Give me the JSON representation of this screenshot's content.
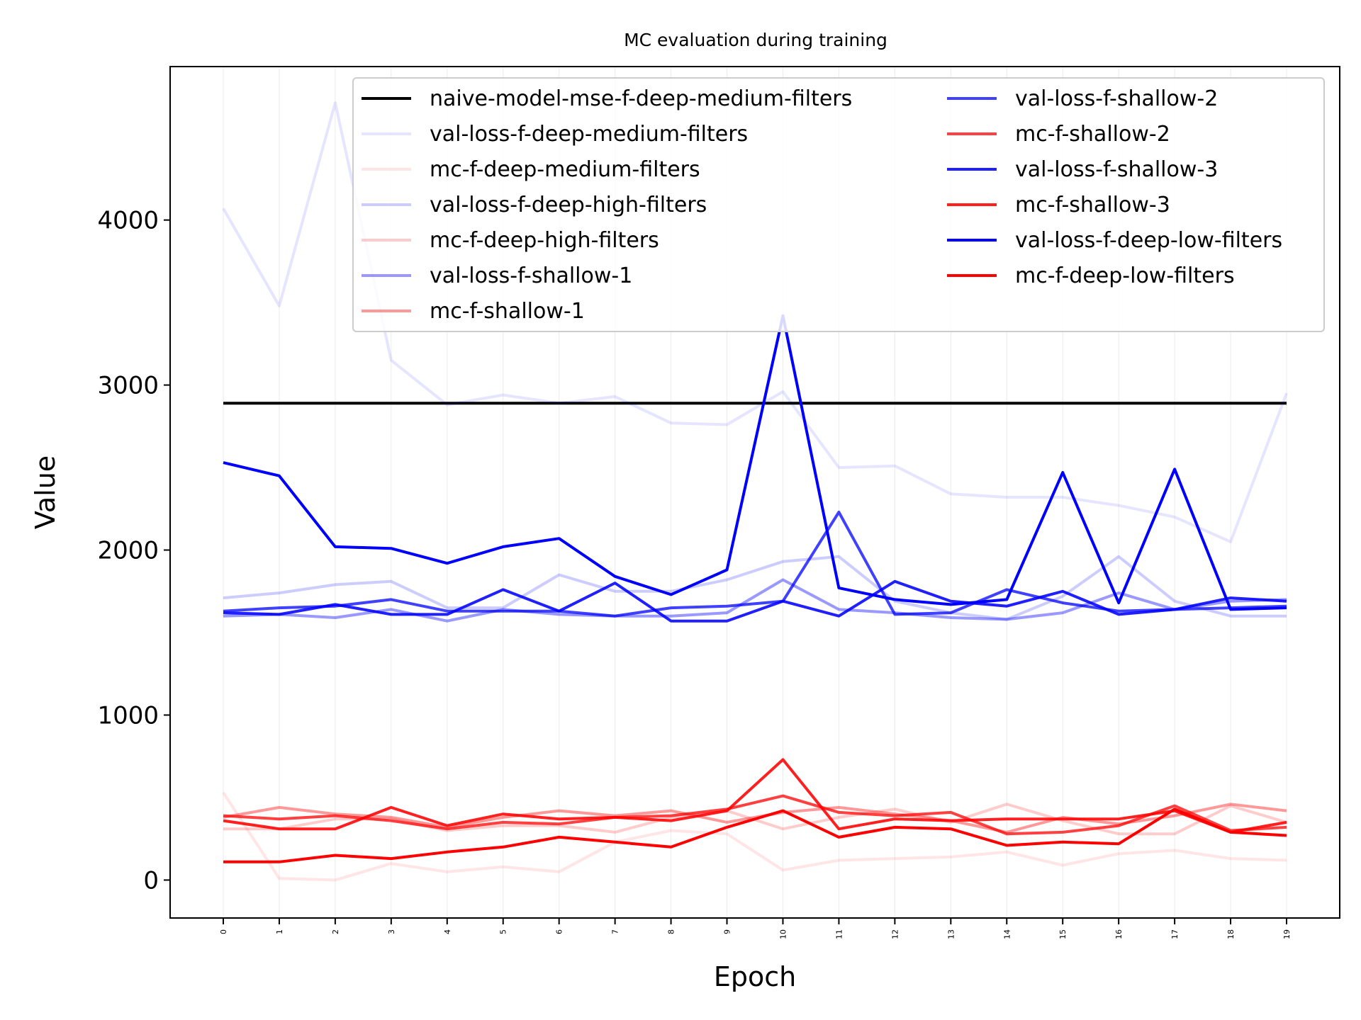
{
  "chart_data": {
    "type": "line",
    "title": "MC evaluation during training",
    "xlabel": "Epoch",
    "ylabel": "Value",
    "x": [
      0,
      1,
      2,
      3,
      4,
      5,
      6,
      7,
      8,
      9,
      10,
      11,
      12,
      13,
      14,
      15,
      16,
      17,
      18,
      19
    ],
    "xticks": [
      "0",
      "1",
      "2",
      "3",
      "4",
      "5",
      "6",
      "7",
      "8",
      "9",
      "10",
      "11",
      "12",
      "13",
      "14",
      "15",
      "16",
      "17",
      "18",
      "19"
    ],
    "yticks": [
      0,
      1000,
      2000,
      3000,
      4000
    ],
    "ylim": [
      -230,
      4930
    ],
    "xlim": [
      -0.95,
      19.95
    ],
    "grid": "vertical",
    "legend_position": "top-right",
    "legend_columns": 2,
    "series": [
      {
        "name": "naive-model-mse-f-deep-medium-filters",
        "color": "#000000",
        "opacity": 1.0,
        "values": [
          2890,
          2890,
          2890,
          2890,
          2890,
          2890,
          2890,
          2890,
          2890,
          2890,
          2890,
          2890,
          2890,
          2890,
          2890,
          2890,
          2890,
          2890,
          2890,
          2890
        ]
      },
      {
        "name": "val-loss-f-deep-medium-filters",
        "color": "#0000ff",
        "opacity": 0.1,
        "values": [
          4070,
          3480,
          4710,
          3150,
          2880,
          2940,
          2890,
          2930,
          2770,
          2760,
          2960,
          2500,
          2510,
          2340,
          2320,
          2320,
          2270,
          2200,
          2050,
          2950
        ]
      },
      {
        "name": "mc-f-deep-medium-filters",
        "color": "#ff0000",
        "opacity": 0.1,
        "values": [
          530,
          10,
          0,
          100,
          50,
          80,
          50,
          230,
          300,
          280,
          60,
          120,
          130,
          140,
          170,
          90,
          160,
          180,
          130,
          120
        ]
      },
      {
        "name": "val-loss-f-deep-high-filters",
        "color": "#0000ff",
        "opacity": 0.2,
        "values": [
          1710,
          1740,
          1790,
          1810,
          1650,
          1650,
          1850,
          1750,
          1750,
          1820,
          1930,
          1960,
          1690,
          1620,
          1580,
          1720,
          1960,
          1690,
          1600,
          1600
        ]
      },
      {
        "name": "mc-f-deep-high-filters",
        "color": "#ff0000",
        "opacity": 0.2,
        "values": [
          310,
          310,
          370,
          370,
          300,
          330,
          330,
          290,
          380,
          420,
          310,
          380,
          430,
          350,
          460,
          360,
          280,
          280,
          450,
          350
        ]
      },
      {
        "name": "val-loss-f-shallow-1",
        "color": "#0000ff",
        "opacity": 0.4,
        "values": [
          1600,
          1610,
          1590,
          1640,
          1570,
          1640,
          1610,
          1600,
          1600,
          1620,
          1820,
          1640,
          1620,
          1590,
          1580,
          1620,
          1740,
          1640,
          1690,
          1700
        ]
      },
      {
        "name": "mc-f-shallow-1",
        "color": "#ff0000",
        "opacity": 0.4,
        "values": [
          380,
          440,
          400,
          380,
          320,
          380,
          420,
          390,
          420,
          350,
          410,
          440,
          400,
          360,
          290,
          380,
          340,
          390,
          460,
          420
        ]
      },
      {
        "name": "val-loss-f-shallow-2",
        "color": "#0000ff",
        "opacity": 0.75,
        "values": [
          1630,
          1650,
          1660,
          1700,
          1630,
          1630,
          1630,
          1600,
          1650,
          1660,
          1690,
          2230,
          1610,
          1620,
          1760,
          1680,
          1630,
          1640,
          1650,
          1660
        ]
      },
      {
        "name": "mc-f-shallow-2",
        "color": "#ff0000",
        "opacity": 0.75,
        "values": [
          390,
          370,
          390,
          360,
          310,
          350,
          340,
          380,
          390,
          430,
          510,
          410,
          390,
          410,
          280,
          290,
          330,
          450,
          300,
          320
        ]
      },
      {
        "name": "val-loss-f-shallow-3",
        "color": "#0000ff",
        "opacity": 0.88,
        "values": [
          1620,
          1610,
          1670,
          1610,
          1610,
          1760,
          1630,
          1800,
          1570,
          1570,
          1690,
          1600,
          1810,
          1690,
          1660,
          1750,
          1610,
          1640,
          1710,
          1690
        ]
      },
      {
        "name": "mc-f-shallow-3",
        "color": "#ff0000",
        "opacity": 0.88,
        "values": [
          360,
          310,
          310,
          440,
          330,
          400,
          370,
          380,
          360,
          420,
          730,
          310,
          370,
          360,
          370,
          370,
          370,
          420,
          290,
          350
        ]
      },
      {
        "name": "val-loss-f-deep-low-filters",
        "color": "#0000ff",
        "opacity": 1.0,
        "values": [
          2530,
          2450,
          2020,
          2010,
          1920,
          2020,
          2070,
          1840,
          1730,
          1880,
          3420,
          1770,
          1700,
          1670,
          1700,
          2470,
          1680,
          2490,
          1640,
          1650
        ]
      },
      {
        "name": "mc-f-deep-low-filters",
        "color": "#ff0000",
        "opacity": 1.0,
        "values": [
          110,
          110,
          150,
          130,
          170,
          200,
          260,
          230,
          200,
          320,
          420,
          260,
          320,
          310,
          210,
          230,
          220,
          430,
          290,
          270
        ]
      }
    ]
  }
}
